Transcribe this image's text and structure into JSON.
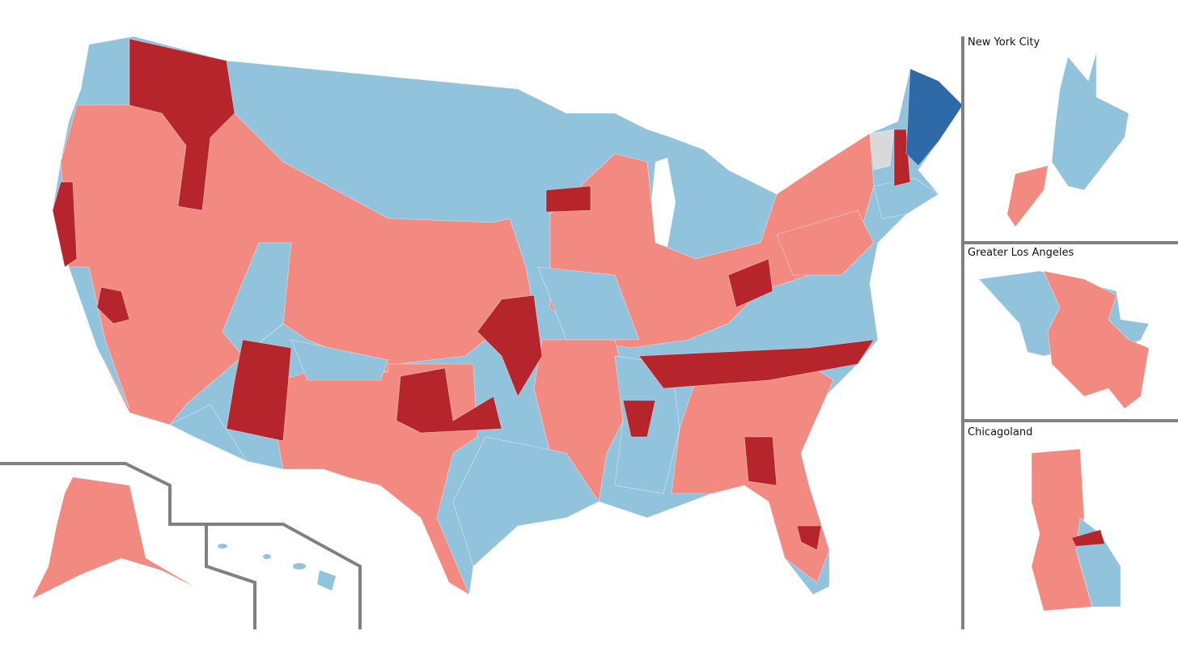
{
  "insets": [
    {
      "title": "New York City"
    },
    {
      "title": "Greater Los Angeles"
    },
    {
      "title": "Chicagoland"
    }
  ]
}
